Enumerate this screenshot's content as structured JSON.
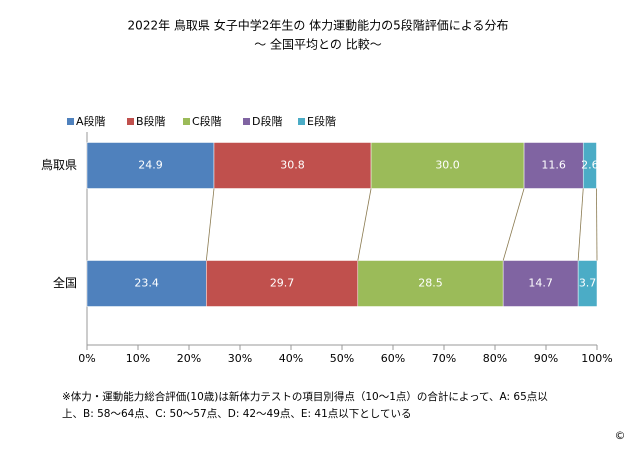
{
  "chart_data": {
    "type": "stacked-bar-horizontal",
    "title": "2022年 鳥取県 女子中学2年生の 体力運動能力の5段階評価による分布",
    "subtitle": "～ 全国平均との 比較～",
    "categories": [
      "鳥取県",
      "全国"
    ],
    "series": [
      {
        "name": "A段階",
        "color": "#4f81bd",
        "values": [
          24.9,
          23.4
        ],
        "value_labels": [
          "24.9",
          "23.4"
        ]
      },
      {
        "name": "B段階",
        "color": "#c0504d",
        "values": [
          30.8,
          29.7
        ],
        "value_labels": [
          "30.8",
          "29.7"
        ]
      },
      {
        "name": "C段階",
        "color": "#9bbb59",
        "values": [
          30.0,
          28.5
        ],
        "value_labels": [
          "30.0",
          "28.5"
        ]
      },
      {
        "name": "D段階",
        "color": "#8064a2",
        "values": [
          11.6,
          14.7
        ],
        "value_labels": [
          "11.6",
          "14.7"
        ]
      },
      {
        "name": "E段階",
        "color": "#4bacc6",
        "values": [
          2.6,
          3.7
        ],
        "value_labels": [
          "2.6",
          "3.7"
        ]
      }
    ],
    "xlim": [
      0,
      100
    ],
    "xticks": [
      {
        "value": 0,
        "label": "0%"
      },
      {
        "value": 10,
        "label": "10%"
      },
      {
        "value": 20,
        "label": "20%"
      },
      {
        "value": 30,
        "label": "30%"
      },
      {
        "value": 40,
        "label": "40%"
      },
      {
        "value": 50,
        "label": "50%"
      },
      {
        "value": 60,
        "label": "60%"
      },
      {
        "value": 70,
        "label": "70%"
      },
      {
        "value": 80,
        "label": "80%"
      },
      {
        "value": 90,
        "label": "90%"
      },
      {
        "value": 100,
        "label": "100%"
      }
    ],
    "legend": "top",
    "note": [
      "※体力・運動能力総合評価(10歳)は新体力テストの項目別得点（10～1点）の合計によって、A: 65点以",
      "上、B: 58～64点、C: 50～57点、D: 42～49点、E: 41点以下としている"
    ],
    "copyright": "©"
  }
}
